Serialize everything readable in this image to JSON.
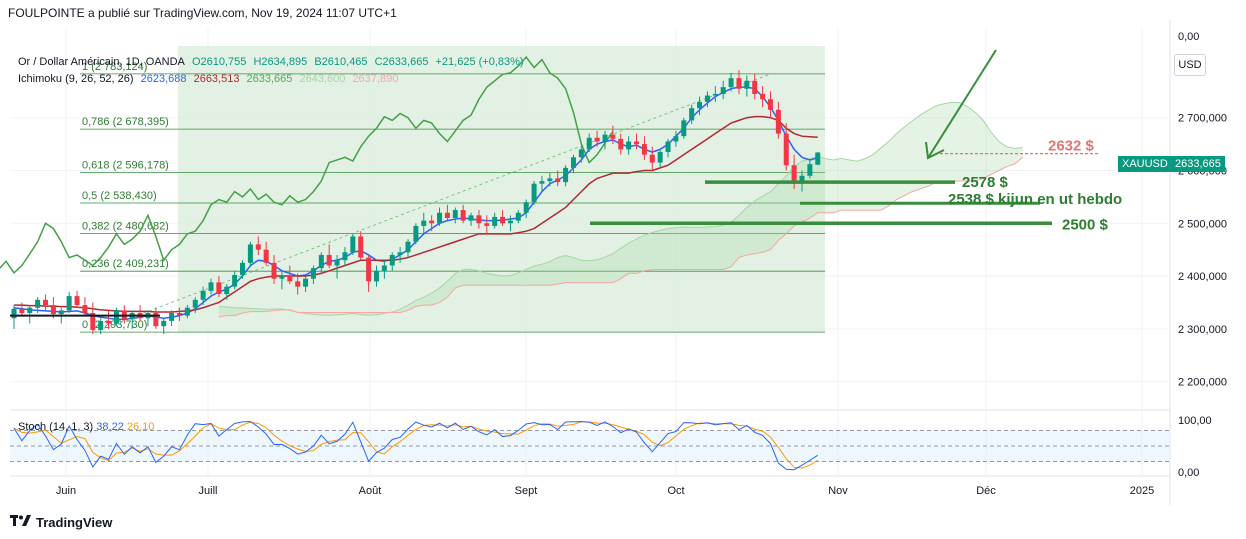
{
  "header": {
    "publisher_line": "FOULPOINTE a publié sur TradingView.com, Nov 19, 2024 11:07 UTC+1"
  },
  "legend": {
    "symbol_line": "Or / Dollar Américain, 1D, OANDA",
    "open": "O2610,755",
    "high": "H2634,895",
    "low": "B2610,465",
    "close": "C2633,665",
    "change": "+21,625 (+0,83%)",
    "ichimoku_label": "Ichimoku (9, 26, 52, 26)",
    "ichimoku_values": [
      "2623,688",
      "2663,513",
      "2633,665",
      "2643,600",
      "2637,890"
    ]
  },
  "currency_button": "USD",
  "price_tag": {
    "symbol": "XAUUSD",
    "value": "2633,665"
  },
  "stoch_legend": {
    "label": "Stoch (14, 1, 3)",
    "k": "38,22",
    "d": "26,10"
  },
  "footer": {
    "brand": "TradingView",
    "logo": "tradingview-logo-icon"
  },
  "colors": {
    "up": "#089981",
    "down": "#f23645",
    "tenkan": "#2962ff",
    "kijun": "#b22833",
    "chikou": "#43a047",
    "cloud_green": "#a5d6a7",
    "cloud_red": "#f7a5a5",
    "fib_fill": "#d6ead8",
    "annotation_green": "#388e3c",
    "annotation_red": "#e57373",
    "stoch_k": "#2962ff",
    "stoch_d": "#ff9800"
  },
  "chart_data": {
    "type": "candlestick",
    "y_axis": {
      "ticks": [
        "2 200,000",
        "2 300,000",
        "2 400,000",
        "2 500,000",
        "2 600,000",
        "2 700,000"
      ],
      "top_label": "0,00",
      "ylim": [
        2150,
        2870
      ]
    },
    "x_axis": {
      "ticks": [
        "Juin",
        "Juill",
        "Août",
        "Sept",
        "Oct",
        "Nov",
        "Déc",
        "2025"
      ]
    },
    "fib_levels": [
      {
        "label": "1 (2 783,124)",
        "ratio": "1",
        "value": 2783.124
      },
      {
        "label": "0,786 (2 678,395)",
        "ratio": "0,786",
        "value": 2678.395
      },
      {
        "label": "0,618 (2 596,178)",
        "ratio": "0,618",
        "value": 2596.178
      },
      {
        "label": "0,5 (2 538,430)",
        "ratio": "0,5",
        "value": 2538.43
      },
      {
        "label": "0,382 (2 480,682)",
        "ratio": "0,382",
        "value": 2480.682
      },
      {
        "label": "0,236 (2 409,231)",
        "ratio": "0,236",
        "value": 2409.231
      },
      {
        "label": "0 (2 293,730)",
        "ratio": "0",
        "value": 2293.73
      }
    ],
    "annotations": [
      {
        "text": "2632 $",
        "value": 2632,
        "color": "red"
      },
      {
        "text": "2578 $",
        "value": 2578,
        "color": "green"
      },
      {
        "text": "2538 $  kijun en ut hebdo",
        "value": 2538,
        "color": "green"
      },
      {
        "text": "2500 $",
        "value": 2500,
        "color": "green"
      }
    ],
    "candles": [
      [
        2320,
        2345,
        2300,
        2338
      ],
      [
        2338,
        2350,
        2325,
        2330
      ],
      [
        2330,
        2345,
        2310,
        2340
      ],
      [
        2340,
        2360,
        2330,
        2355
      ],
      [
        2355,
        2365,
        2335,
        2345
      ],
      [
        2345,
        2360,
        2320,
        2328
      ],
      [
        2328,
        2340,
        2310,
        2335
      ],
      [
        2335,
        2370,
        2330,
        2362
      ],
      [
        2362,
        2372,
        2340,
        2345
      ],
      [
        2345,
        2360,
        2325,
        2330
      ],
      [
        2330,
        2350,
        2290,
        2298
      ],
      [
        2298,
        2320,
        2290,
        2315
      ],
      [
        2315,
        2335,
        2300,
        2310
      ],
      [
        2310,
        2340,
        2305,
        2335
      ],
      [
        2335,
        2345,
        2310,
        2318
      ],
      [
        2318,
        2335,
        2300,
        2330
      ],
      [
        2330,
        2345,
        2315,
        2320
      ],
      [
        2320,
        2335,
        2305,
        2330
      ],
      [
        2330,
        2340,
        2300,
        2305
      ],
      [
        2305,
        2320,
        2290,
        2315
      ],
      [
        2315,
        2335,
        2305,
        2330
      ],
      [
        2330,
        2340,
        2315,
        2325
      ],
      [
        2325,
        2345,
        2320,
        2340
      ],
      [
        2340,
        2360,
        2330,
        2355
      ],
      [
        2355,
        2380,
        2345,
        2372
      ],
      [
        2372,
        2395,
        2365,
        2388
      ],
      [
        2388,
        2400,
        2360,
        2366
      ],
      [
        2366,
        2385,
        2355,
        2380
      ],
      [
        2380,
        2410,
        2375,
        2402
      ],
      [
        2402,
        2430,
        2395,
        2425
      ],
      [
        2425,
        2465,
        2418,
        2460
      ],
      [
        2460,
        2475,
        2440,
        2450
      ],
      [
        2450,
        2465,
        2420,
        2425
      ],
      [
        2425,
        2440,
        2385,
        2395
      ],
      [
        2395,
        2410,
        2375,
        2400
      ],
      [
        2400,
        2420,
        2385,
        2390
      ],
      [
        2390,
        2405,
        2365,
        2380
      ],
      [
        2380,
        2400,
        2370,
        2395
      ],
      [
        2395,
        2420,
        2385,
        2415
      ],
      [
        2415,
        2445,
        2405,
        2440
      ],
      [
        2440,
        2460,
        2415,
        2420
      ],
      [
        2420,
        2440,
        2395,
        2430
      ],
      [
        2430,
        2455,
        2420,
        2445
      ],
      [
        2445,
        2480,
        2440,
        2475
      ],
      [
        2475,
        2485,
        2430,
        2435
      ],
      [
        2435,
        2440,
        2370,
        2390
      ],
      [
        2390,
        2420,
        2380,
        2410
      ],
      [
        2410,
        2430,
        2395,
        2420
      ],
      [
        2420,
        2445,
        2410,
        2440
      ],
      [
        2440,
        2455,
        2425,
        2445
      ],
      [
        2445,
        2470,
        2435,
        2465
      ],
      [
        2465,
        2500,
        2460,
        2495
      ],
      [
        2495,
        2520,
        2480,
        2505
      ],
      [
        2505,
        2515,
        2485,
        2500
      ],
      [
        2500,
        2530,
        2495,
        2520
      ],
      [
        2520,
        2535,
        2505,
        2510
      ],
      [
        2510,
        2530,
        2500,
        2525
      ],
      [
        2525,
        2535,
        2500,
        2505
      ],
      [
        2505,
        2520,
        2495,
        2515
      ],
      [
        2515,
        2525,
        2490,
        2500
      ],
      [
        2500,
        2515,
        2480,
        2495
      ],
      [
        2495,
        2520,
        2490,
        2512
      ],
      [
        2512,
        2525,
        2495,
        2500
      ],
      [
        2500,
        2515,
        2485,
        2505
      ],
      [
        2505,
        2525,
        2500,
        2520
      ],
      [
        2520,
        2545,
        2510,
        2540
      ],
      [
        2540,
        2580,
        2535,
        2575
      ],
      [
        2575,
        2590,
        2560,
        2580
      ],
      [
        2580,
        2595,
        2570,
        2585
      ],
      [
        2585,
        2600,
        2570,
        2578
      ],
      [
        2578,
        2610,
        2570,
        2605
      ],
      [
        2605,
        2630,
        2595,
        2625
      ],
      [
        2625,
        2645,
        2615,
        2640
      ],
      [
        2640,
        2670,
        2635,
        2662
      ],
      [
        2662,
        2675,
        2645,
        2655
      ],
      [
        2655,
        2675,
        2640,
        2668
      ],
      [
        2668,
        2685,
        2650,
        2660
      ],
      [
        2660,
        2670,
        2630,
        2640
      ],
      [
        2640,
        2665,
        2630,
        2655
      ],
      [
        2655,
        2670,
        2640,
        2650
      ],
      [
        2650,
        2665,
        2620,
        2630
      ],
      [
        2630,
        2645,
        2600,
        2615
      ],
      [
        2615,
        2640,
        2605,
        2635
      ],
      [
        2635,
        2660,
        2625,
        2655
      ],
      [
        2655,
        2675,
        2645,
        2665
      ],
      [
        2665,
        2700,
        2660,
        2695
      ],
      [
        2695,
        2725,
        2688,
        2718
      ],
      [
        2718,
        2740,
        2705,
        2730
      ],
      [
        2730,
        2750,
        2720,
        2742
      ],
      [
        2742,
        2760,
        2730,
        2745
      ],
      [
        2745,
        2770,
        2735,
        2758
      ],
      [
        2758,
        2785,
        2750,
        2775
      ],
      [
        2775,
        2790,
        2745,
        2755
      ],
      [
        2755,
        2780,
        2740,
        2770
      ],
      [
        2770,
        2783,
        2735,
        2745
      ],
      [
        2745,
        2760,
        2720,
        2735
      ],
      [
        2735,
        2750,
        2700,
        2715
      ],
      [
        2715,
        2730,
        2660,
        2670
      ],
      [
        2670,
        2690,
        2600,
        2610
      ],
      [
        2610,
        2630,
        2565,
        2575
      ],
      [
        2575,
        2600,
        2560,
        2590
      ],
      [
        2590,
        2620,
        2585,
        2612
      ],
      [
        2611,
        2635,
        2610,
        2634
      ]
    ],
    "tenkan": [
      2340,
      2338,
      2336,
      2335,
      2334,
      2333,
      2332,
      2333,
      2334,
      2330,
      2325,
      2322,
      2320,
      2318,
      2318,
      2320,
      2322,
      2325,
      2322,
      2320,
      2322,
      2325,
      2330,
      2338,
      2350,
      2362,
      2370,
      2375,
      2385,
      2400,
      2420,
      2430,
      2428,
      2420,
      2410,
      2405,
      2400,
      2402,
      2410,
      2420,
      2428,
      2430,
      2435,
      2445,
      2448,
      2440,
      2430,
      2428,
      2432,
      2440,
      2450,
      2465,
      2480,
      2490,
      2500,
      2505,
      2508,
      2510,
      2508,
      2506,
      2505,
      2505,
      2506,
      2508,
      2510,
      2520,
      2540,
      2560,
      2575,
      2582,
      2590,
      2605,
      2620,
      2640,
      2650,
      2655,
      2658,
      2650,
      2645,
      2648,
      2640,
      2635,
      2640,
      2650,
      2665,
      2680,
      2700,
      2715,
      2728,
      2740,
      2748,
      2755,
      2758,
      2758,
      2755,
      2740,
      2720,
      2695,
      2665,
      2640,
      2625,
      2620,
      2624
    ],
    "kijun": [
      2345,
      2345,
      2344,
      2344,
      2343,
      2343,
      2342,
      2342,
      2341,
      2340,
      2338,
      2336,
      2335,
      2334,
      2333,
      2333,
      2333,
      2333,
      2332,
      2332,
      2332,
      2333,
      2334,
      2336,
      2340,
      2345,
      2350,
      2360,
      2370,
      2380,
      2390,
      2395,
      2398,
      2400,
      2400,
      2400,
      2400,
      2400,
      2402,
      2405,
      2410,
      2415,
      2420,
      2425,
      2430,
      2430,
      2430,
      2430,
      2430,
      2432,
      2435,
      2440,
      2445,
      2450,
      2455,
      2460,
      2465,
      2470,
      2475,
      2480,
      2480,
      2480,
      2480,
      2480,
      2482,
      2485,
      2490,
      2500,
      2510,
      2520,
      2530,
      2545,
      2560,
      2575,
      2585,
      2590,
      2595,
      2595,
      2595,
      2598,
      2600,
      2600,
      2605,
      2610,
      2620,
      2630,
      2640,
      2650,
      2660,
      2670,
      2680,
      2690,
      2695,
      2700,
      2702,
      2702,
      2700,
      2695,
      2680,
      2670,
      2665,
      2664,
      2663
    ],
    "chikou_shift": 26
  }
}
